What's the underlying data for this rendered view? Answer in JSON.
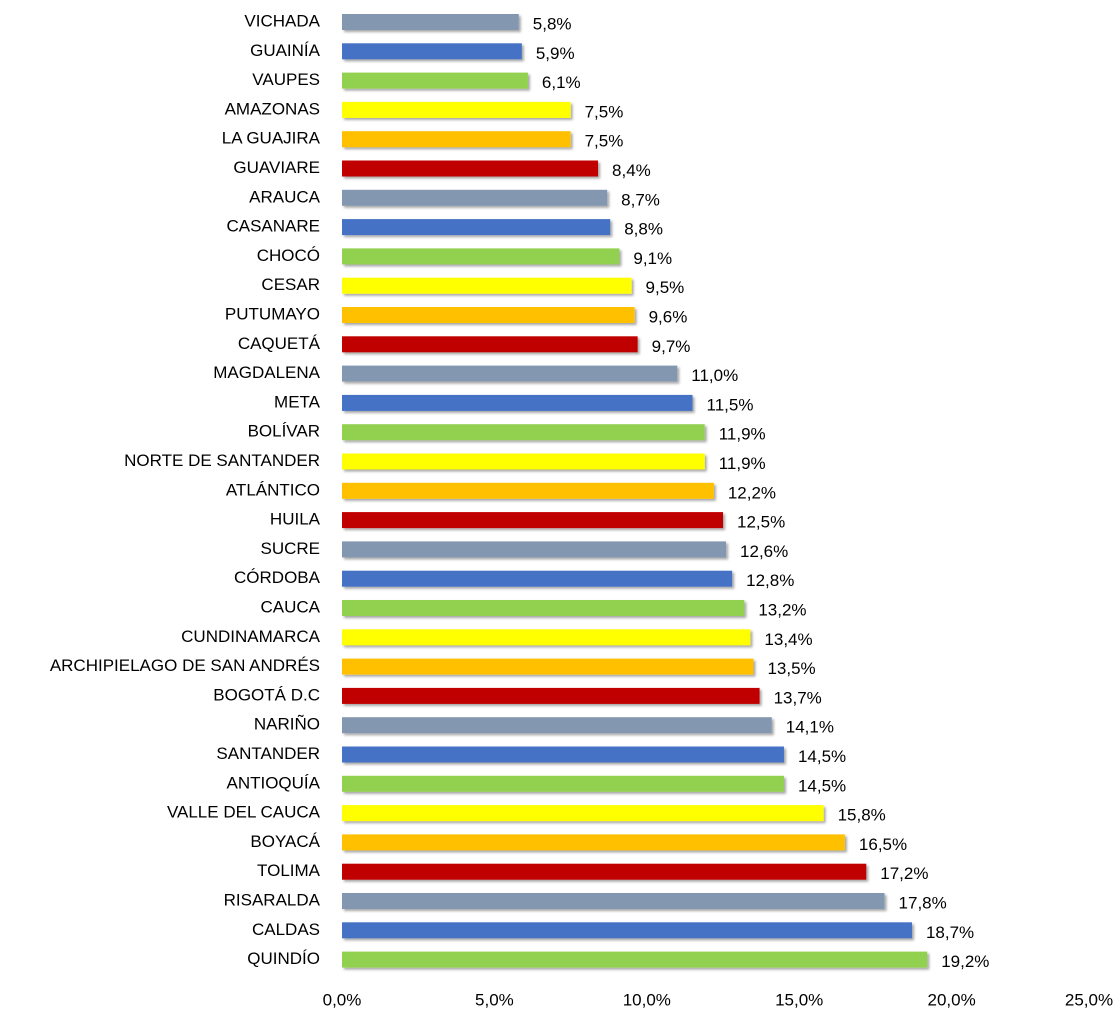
{
  "chart_data": {
    "type": "barh",
    "categories": [
      "VICHADA",
      "GUAINÍA",
      "VAUPES",
      "AMAZONAS",
      "LA GUAJIRA",
      "GUAVIARE",
      "ARAUCA",
      "CASANARE",
      "CHOCÓ",
      "CESAR",
      "PUTUMAYO",
      "CAQUETÁ",
      "MAGDALENA",
      "META",
      "BOLÍVAR",
      "NORTE DE SANTANDER",
      "ATLÁNTICO",
      "HUILA",
      "SUCRE",
      "CÓRDOBA",
      "CAUCA",
      "CUNDINAMARCA",
      "ARCHIPIELAGO DE SAN ANDRÉS",
      "BOGOTÁ D.C",
      "NARIÑO",
      "SANTANDER",
      "ANTIOQUÍA",
      "VALLE DEL CAUCA",
      "BOYACÁ",
      "TOLIMA",
      "RISARALDA",
      "CALDAS",
      "QUINDÍO"
    ],
    "values": [
      5.8,
      5.9,
      6.1,
      7.5,
      7.5,
      8.4,
      8.7,
      8.8,
      9.1,
      9.5,
      9.6,
      9.7,
      11.0,
      11.5,
      11.9,
      11.9,
      12.2,
      12.5,
      12.6,
      12.8,
      13.2,
      13.4,
      13.5,
      13.7,
      14.1,
      14.5,
      14.5,
      15.8,
      16.5,
      17.2,
      17.8,
      18.7,
      19.2
    ],
    "value_labels": [
      "5,8%",
      "5,9%",
      "6,1%",
      "7,5%",
      "7,5%",
      "8,4%",
      "8,7%",
      "8,8%",
      "9,1%",
      "9,5%",
      "9,6%",
      "9,7%",
      "11,0%",
      "11,5%",
      "11,9%",
      "11,9%",
      "12,2%",
      "12,5%",
      "12,6%",
      "12,8%",
      "13,2%",
      "13,4%",
      "13,5%",
      "13,7%",
      "14,1%",
      "14,5%",
      "14,5%",
      "15,8%",
      "16,5%",
      "17,2%",
      "17,8%",
      "18,7%",
      "19,2%"
    ],
    "colors": [
      "#8497b0",
      "#4472c4",
      "#92d050",
      "#ffff00",
      "#ffc000",
      "#c00000",
      "#8497b0",
      "#4472c4",
      "#92d050",
      "#ffff00",
      "#ffc000",
      "#c00000",
      "#8497b0",
      "#4472c4",
      "#92d050",
      "#ffff00",
      "#ffc000",
      "#c00000",
      "#8497b0",
      "#4472c4",
      "#92d050",
      "#ffff00",
      "#ffc000",
      "#c00000",
      "#8497b0",
      "#4472c4",
      "#92d050",
      "#ffff00",
      "#ffc000",
      "#c00000",
      "#8497b0",
      "#4472c4",
      "#92d050"
    ],
    "xlim": [
      0,
      25
    ],
    "xticks": [
      {
        "value": 0,
        "label": "0,0%"
      },
      {
        "value": 5,
        "label": "5,0%"
      },
      {
        "value": 10,
        "label": "10,0%"
      },
      {
        "value": 15,
        "label": "15,0%"
      },
      {
        "value": 20,
        "label": "20,0%"
      },
      {
        "value": 25,
        "label": "25,0%"
      }
    ]
  }
}
